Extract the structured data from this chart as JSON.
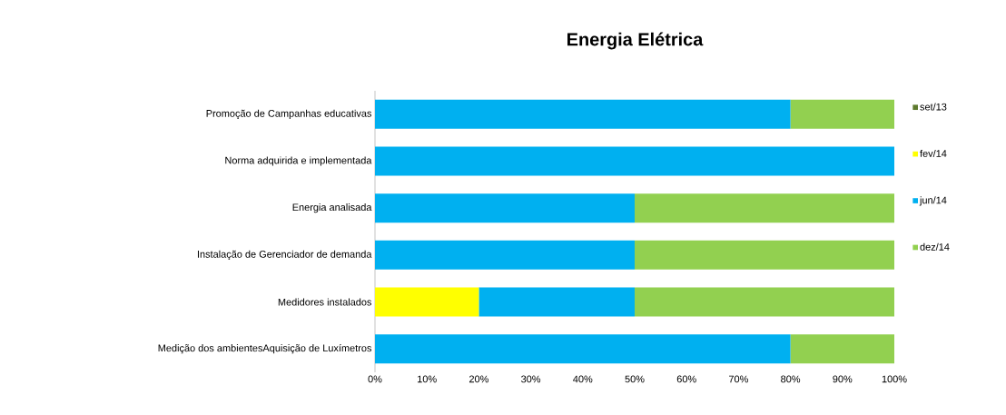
{
  "chart_data": {
    "type": "bar",
    "orientation": "horizontal",
    "stacked": true,
    "title": "Energia Elétrica",
    "categories": [
      "Promoção de Campanhas educativas",
      "Norma adquirida e implementada",
      "Energia analisada",
      "Instalação de Gerenciador de demanda",
      "Medidores instalados",
      "Medição dos ambientesAquisição de Luxímetros"
    ],
    "series": [
      {
        "name": "set/13",
        "color": "#5e7a2e",
        "values": [
          0,
          0,
          0,
          0,
          0,
          0
        ]
      },
      {
        "name": "fev/14",
        "color": "#ffff00",
        "values": [
          0,
          0,
          0,
          0,
          20,
          0
        ]
      },
      {
        "name": "jun/14",
        "color": "#00b0f0",
        "values": [
          80,
          100,
          50,
          50,
          30,
          80
        ]
      },
      {
        "name": "dez/14",
        "color": "#92d050",
        "values": [
          20,
          0,
          50,
          50,
          50,
          20
        ]
      }
    ],
    "xlim": [
      0,
      100
    ],
    "xticks": [
      {
        "value": 0,
        "label": "0%"
      },
      {
        "value": 10,
        "label": "10%"
      },
      {
        "value": 20,
        "label": "20%"
      },
      {
        "value": 30,
        "label": "30%"
      },
      {
        "value": 40,
        "label": "40%"
      },
      {
        "value": 50,
        "label": "50%"
      },
      {
        "value": 60,
        "label": "60%"
      },
      {
        "value": 70,
        "label": "70%"
      },
      {
        "value": 80,
        "label": "80%"
      },
      {
        "value": 90,
        "label": "90%"
      },
      {
        "value": 100,
        "label": "100%"
      }
    ],
    "legend": "right",
    "grid": false
  }
}
